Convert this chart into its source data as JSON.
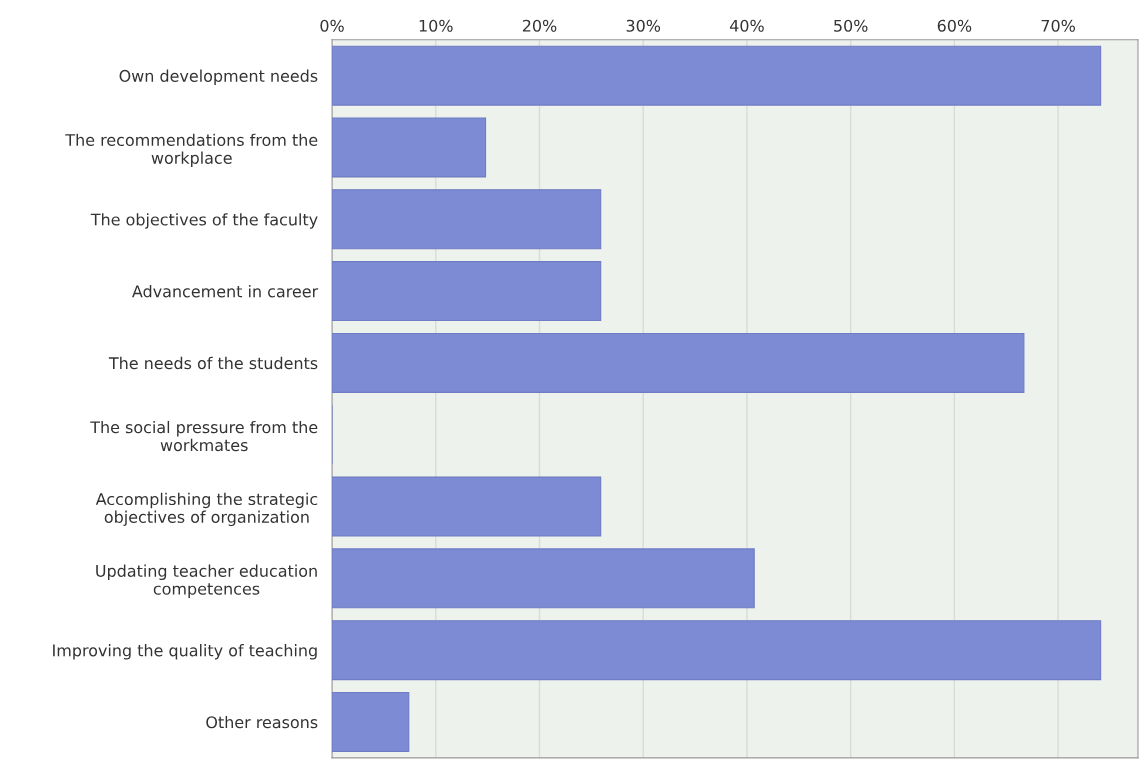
{
  "chart_data": {
    "type": "bar",
    "orientation": "horizontal",
    "categories": [
      "Own development needs",
      "The recommendations from the\nworkplace",
      "The objectives of the faculty",
      "Advancement in career",
      "The needs of the students",
      "The social pressure from the\nworkmates",
      "Accomplishing the strategic\nobjectives of organization",
      "Updating teacher education\ncompetences",
      "Improving the quality of teaching",
      "Other reasons"
    ],
    "values": [
      74.1,
      14.8,
      25.9,
      25.9,
      66.7,
      0,
      25.9,
      40.7,
      74.1,
      7.4
    ],
    "color": "#7d8ad4",
    "xlim": [
      0,
      77.7
    ],
    "xticks": [
      {
        "value": 0,
        "label": "0%"
      },
      {
        "value": 10,
        "label": "10%"
      },
      {
        "value": 20,
        "label": "20%"
      },
      {
        "value": 30,
        "label": "30%"
      },
      {
        "value": 40,
        "label": "40%"
      },
      {
        "value": 50,
        "label": "50%"
      },
      {
        "value": 60,
        "label": "60%"
      },
      {
        "value": 70,
        "label": "70%"
      }
    ],
    "grid": "x",
    "legend": false
  }
}
